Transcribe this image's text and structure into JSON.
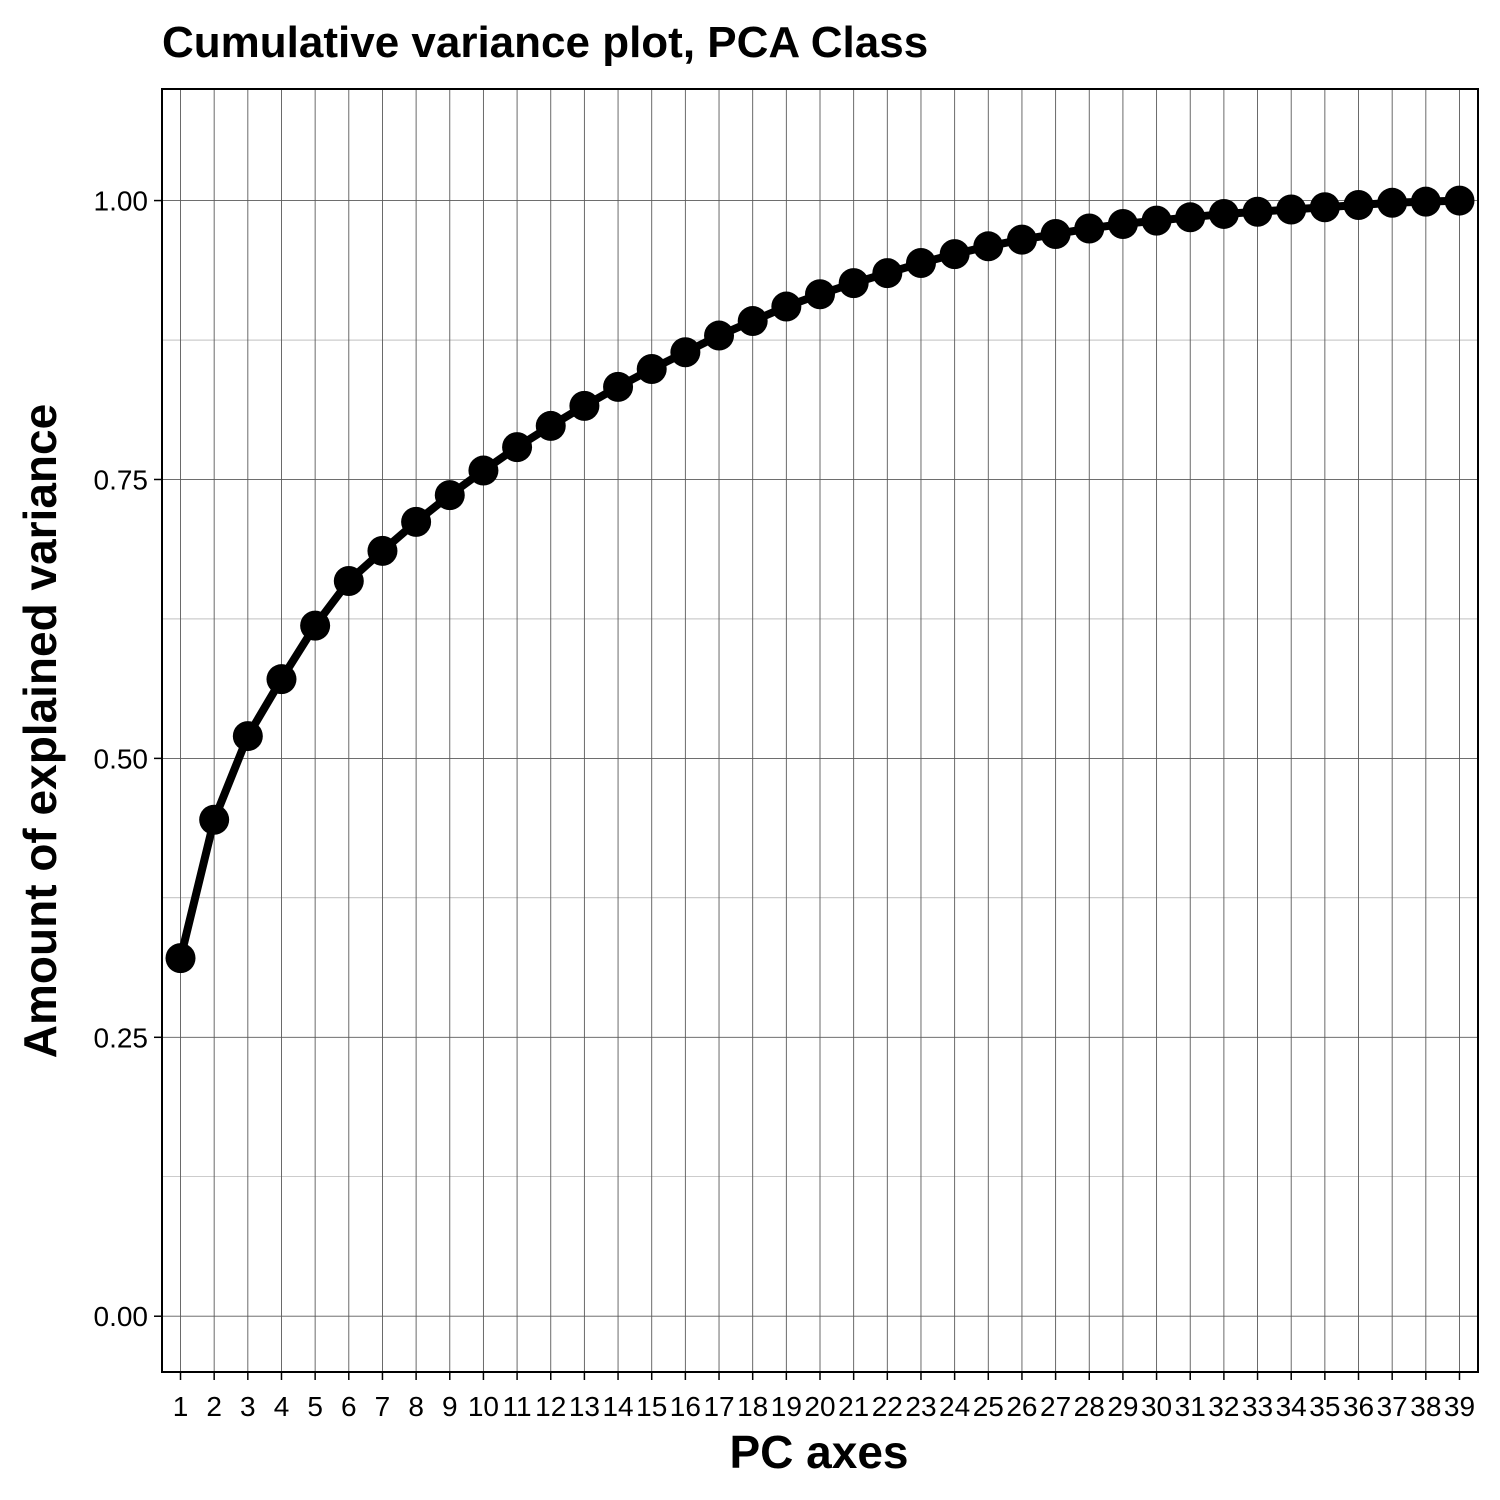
{
  "chart_data": {
    "type": "line",
    "title": "Cumulative variance plot, PCA Class",
    "xlabel": "PC axes",
    "ylabel": "Amount of explained variance",
    "x": [
      1,
      2,
      3,
      4,
      5,
      6,
      7,
      8,
      9,
      10,
      11,
      12,
      13,
      14,
      15,
      16,
      17,
      18,
      19,
      20,
      21,
      22,
      23,
      24,
      25,
      26,
      27,
      28,
      29,
      30,
      31,
      32,
      33,
      34,
      35,
      36,
      37,
      38,
      39
    ],
    "x_tick_labels": [
      "1",
      "2",
      "3",
      "4",
      "5",
      "6",
      "7",
      "8",
      "9",
      "10",
      "11",
      "12",
      "13",
      "14",
      "15",
      "16",
      "17",
      "18",
      "19",
      "20",
      "21",
      "22",
      "23",
      "24",
      "25",
      "26",
      "27",
      "28",
      "29",
      "30",
      "31",
      "32",
      "33",
      "34",
      "35",
      "36",
      "37",
      "38",
      "39"
    ],
    "series": [
      {
        "values": [
          0.321,
          0.445,
          0.52,
          0.571,
          0.619,
          0.659,
          0.686,
          0.712,
          0.736,
          0.758,
          0.779,
          0.798,
          0.816,
          0.833,
          0.849,
          0.864,
          0.879,
          0.892,
          0.905,
          0.916,
          0.926,
          0.935,
          0.944,
          0.952,
          0.959,
          0.965,
          0.97,
          0.975,
          0.979,
          0.982,
          0.985,
          0.988,
          0.99,
          0.992,
          0.994,
          0.996,
          0.998,
          0.999,
          1.0
        ],
        "color": "#000000"
      }
    ],
    "yticks": [
      0.0,
      0.25,
      0.5,
      0.75,
      1.0
    ],
    "y_tick_labels": [
      "0.00",
      "0.25",
      "0.50",
      "0.75",
      "1.00"
    ],
    "ylim": [
      -0.05,
      1.1
    ],
    "xlim": [
      0.45,
      39.55
    ],
    "grid": true,
    "legend": "none"
  }
}
